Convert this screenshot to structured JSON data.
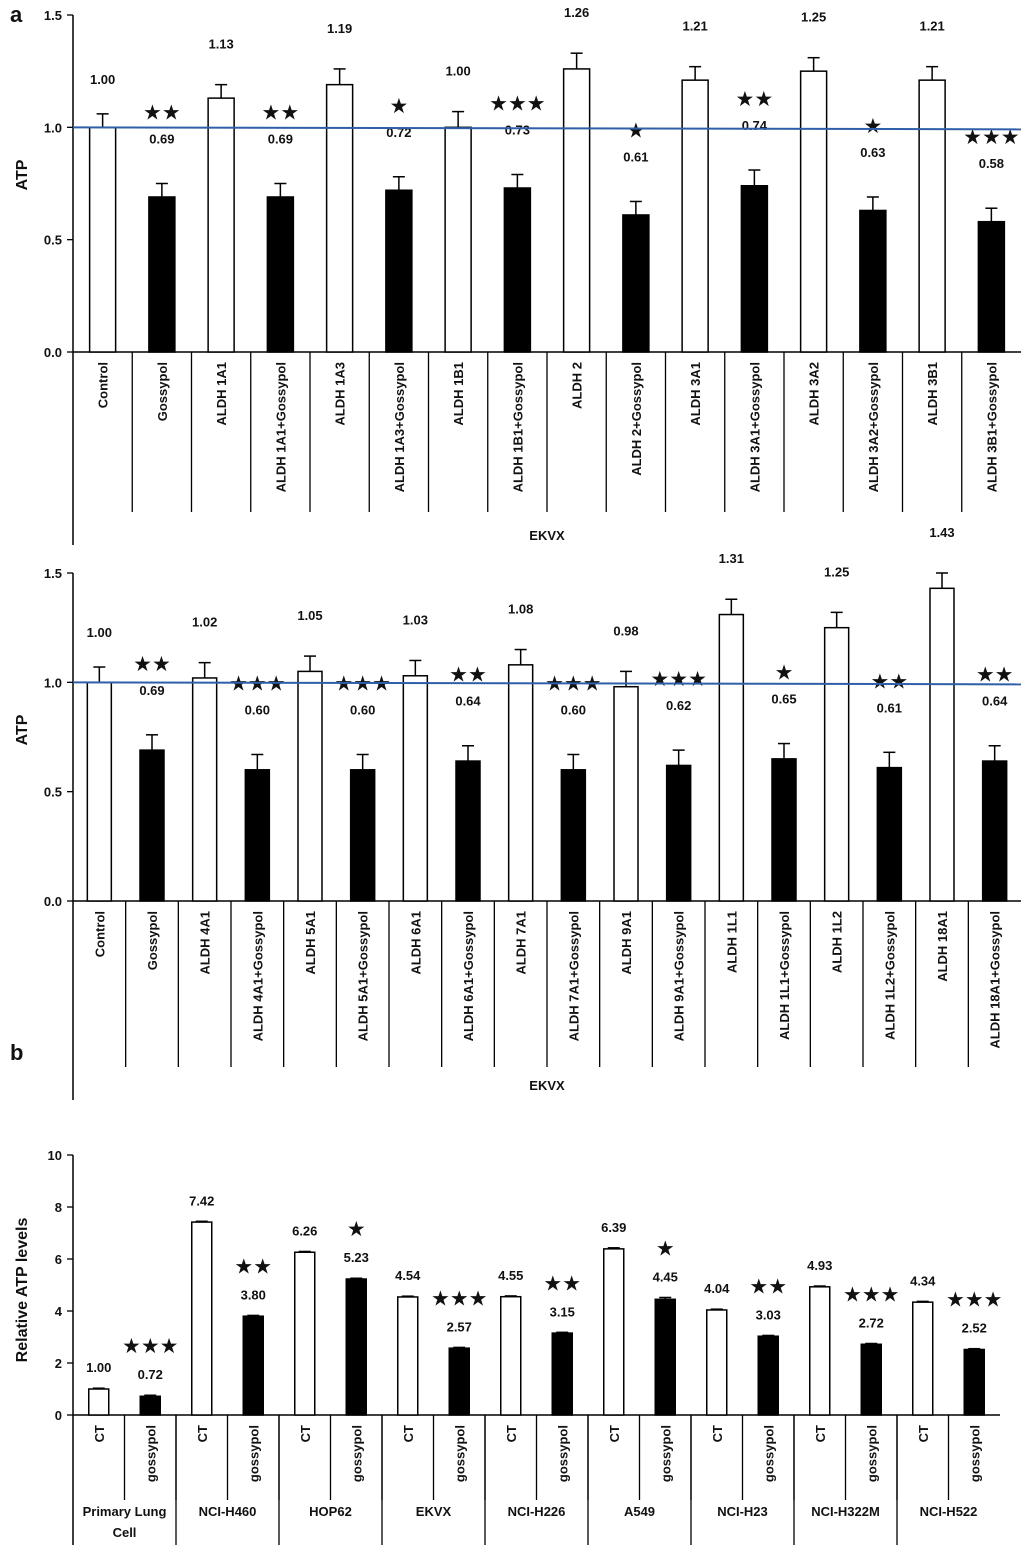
{
  "panels": {
    "a": "a",
    "b": "b"
  },
  "chart_data": [
    {
      "type": "bar",
      "panel": "a",
      "ylabel": "ATP",
      "ylim": [
        0,
        1.5
      ],
      "yticks": [
        "0.0",
        "0.5",
        "1.0",
        "1.5"
      ],
      "xgroup": "EKVX",
      "reference_line": 1.0,
      "reference_color": "#2f5fa8",
      "categories": [
        "Control",
        "Gossypol",
        "ALDH 1A1",
        "ALDH 1A1+Gossypol",
        "ALDH 1A3",
        "ALDH 1A3+Gossypol",
        "ALDH 1B1",
        "ALDH 1B1+Gossypol",
        "ALDH 2",
        "ALDH 2+Gossypol",
        "ALDH 3A1",
        "ALDH 3A1+Gossypol",
        "ALDH 3A2",
        "ALDH 3A2+Gossypol",
        "ALDH 3B1",
        "ALDH 3B1+Gossypol"
      ],
      "values": [
        1.0,
        0.69,
        1.13,
        0.69,
        1.19,
        0.72,
        1.0,
        0.73,
        1.26,
        0.61,
        1.21,
        0.74,
        1.25,
        0.63,
        1.21,
        0.58
      ],
      "labels": [
        "1.00",
        "0.69",
        "1.13",
        "0.69",
        "1.19",
        "0.72",
        "1.00",
        "0.73",
        "1.26",
        "0.61",
        "1.21",
        "0.74",
        "1.25",
        "0.63",
        "1.21",
        "0.58"
      ],
      "errors": [
        0.06,
        0.06,
        0.06,
        0.06,
        0.07,
        0.06,
        0.07,
        0.06,
        0.07,
        0.06,
        0.06,
        0.07,
        0.06,
        0.06,
        0.06,
        0.06
      ],
      "fills": [
        "#ffffff",
        "#000000",
        "#ffffff",
        "#000000",
        "#ffffff",
        "#000000",
        "#ffffff",
        "#000000",
        "#ffffff",
        "#000000",
        "#ffffff",
        "#000000",
        "#ffffff",
        "#000000",
        "#ffffff",
        "#000000"
      ],
      "stars": [
        "",
        "★★",
        "",
        "★★",
        "",
        "★",
        "",
        "★★★",
        "",
        "★",
        "",
        "★★",
        "",
        "★",
        "",
        "★★★"
      ]
    },
    {
      "type": "bar",
      "panel": "a",
      "ylabel": "ATP",
      "ylim": [
        0,
        1.5
      ],
      "yticks": [
        "0.0",
        "0.5",
        "1.0",
        "1.5"
      ],
      "xgroup": "EKVX",
      "reference_line": 1.0,
      "reference_color": "#2f5fa8",
      "categories": [
        "Control",
        "Gossypol",
        "ALDH 4A1",
        "ALDH 4A1+Gossypol",
        "ALDH 5A1",
        "ALDH 5A1+Gossypol",
        "ALDH 6A1",
        "ALDH 6A1+Gossypol",
        "ALDH 7A1",
        "ALDH 7A1+Gossypol",
        "ALDH 9A1",
        "ALDH 9A1+Gossypol",
        "ALDH 1L1",
        "ALDH 1L1+Gossypol",
        "ALDH 1L2",
        "ALDH 1L2+Gossypol",
        "ALDH 18A1",
        "ALDH 18A1+Gossypol"
      ],
      "values": [
        1.0,
        0.69,
        1.02,
        0.6,
        1.05,
        0.6,
        1.03,
        0.64,
        1.08,
        0.6,
        0.98,
        0.62,
        1.31,
        0.65,
        1.25,
        0.61,
        1.43,
        0.64
      ],
      "labels": [
        "1.00",
        "0.69",
        "1.02",
        "0.60",
        "1.05",
        "0.60",
        "1.03",
        "0.64",
        "1.08",
        "0.60",
        "0.98",
        "0.62",
        "1.31",
        "0.65",
        "1.25",
        "0.61",
        "1.43",
        "0.64"
      ],
      "errors": [
        0.07,
        0.07,
        0.07,
        0.07,
        0.07,
        0.07,
        0.07,
        0.07,
        0.07,
        0.07,
        0.07,
        0.07,
        0.07,
        0.07,
        0.07,
        0.07,
        0.07,
        0.07
      ],
      "fills": [
        "#ffffff",
        "#000000",
        "#ffffff",
        "#000000",
        "#ffffff",
        "#000000",
        "#ffffff",
        "#000000",
        "#ffffff",
        "#000000",
        "#ffffff",
        "#000000",
        "#ffffff",
        "#000000",
        "#ffffff",
        "#000000",
        "#ffffff",
        "#000000"
      ],
      "stars": [
        "",
        "★★",
        "",
        "★★★",
        "",
        "★★★",
        "",
        "★★",
        "",
        "★★★",
        "",
        "★★★",
        "",
        "★",
        "",
        "★★",
        "",
        "★★"
      ]
    },
    {
      "type": "bar",
      "panel": "b",
      "ylabel": "Relative ATP levels",
      "ylim": [
        0,
        10
      ],
      "yticks": [
        "0",
        "2",
        "4",
        "6",
        "8",
        "10"
      ],
      "categories": [
        "CT",
        "gossypol",
        "CT",
        "gossypol",
        "CT",
        "gossypol",
        "CT",
        "gossypol",
        "CT",
        "gossypol",
        "CT",
        "gossypol",
        "CT",
        "gossypol",
        "CT",
        "gossypol",
        "CT",
        "gossypol"
      ],
      "groups": [
        "Primary Lung Cell",
        "NCI-H460",
        "HOP62",
        "EKVX",
        "NCI-H226",
        "A549",
        "NCI-H23",
        "NCI-H322M",
        "NCI-H522"
      ],
      "values": [
        1.0,
        0.72,
        7.42,
        3.8,
        6.26,
        5.23,
        4.54,
        2.57,
        4.55,
        3.15,
        6.39,
        4.45,
        4.04,
        3.03,
        4.93,
        2.72,
        4.34,
        2.52
      ],
      "labels": [
        "1.00",
        "0.72",
        "7.42",
        "3.80",
        "6.26",
        "5.23",
        "4.54",
        "2.57",
        "4.55",
        "3.15",
        "6.39",
        "4.45",
        "4.04",
        "3.03",
        "4.93",
        "2.72",
        "4.34",
        "2.52"
      ],
      "errors": [
        0.03,
        0.04,
        0.03,
        0.03,
        0.03,
        0.03,
        0.03,
        0.03,
        0.03,
        0.03,
        0.04,
        0.07,
        0.03,
        0.03,
        0.03,
        0.03,
        0.03,
        0.03
      ],
      "fills": [
        "#ffffff",
        "#000000",
        "#ffffff",
        "#000000",
        "#ffffff",
        "#000000",
        "#ffffff",
        "#000000",
        "#ffffff",
        "#000000",
        "#ffffff",
        "#000000",
        "#ffffff",
        "#000000",
        "#ffffff",
        "#000000",
        "#ffffff",
        "#000000"
      ],
      "stars": [
        "",
        "★★★",
        "",
        "★★",
        "",
        "★",
        "",
        "★★★",
        "",
        "★★",
        "",
        "★",
        "",
        "★★",
        "",
        "★★★",
        "",
        "★★★"
      ]
    }
  ]
}
